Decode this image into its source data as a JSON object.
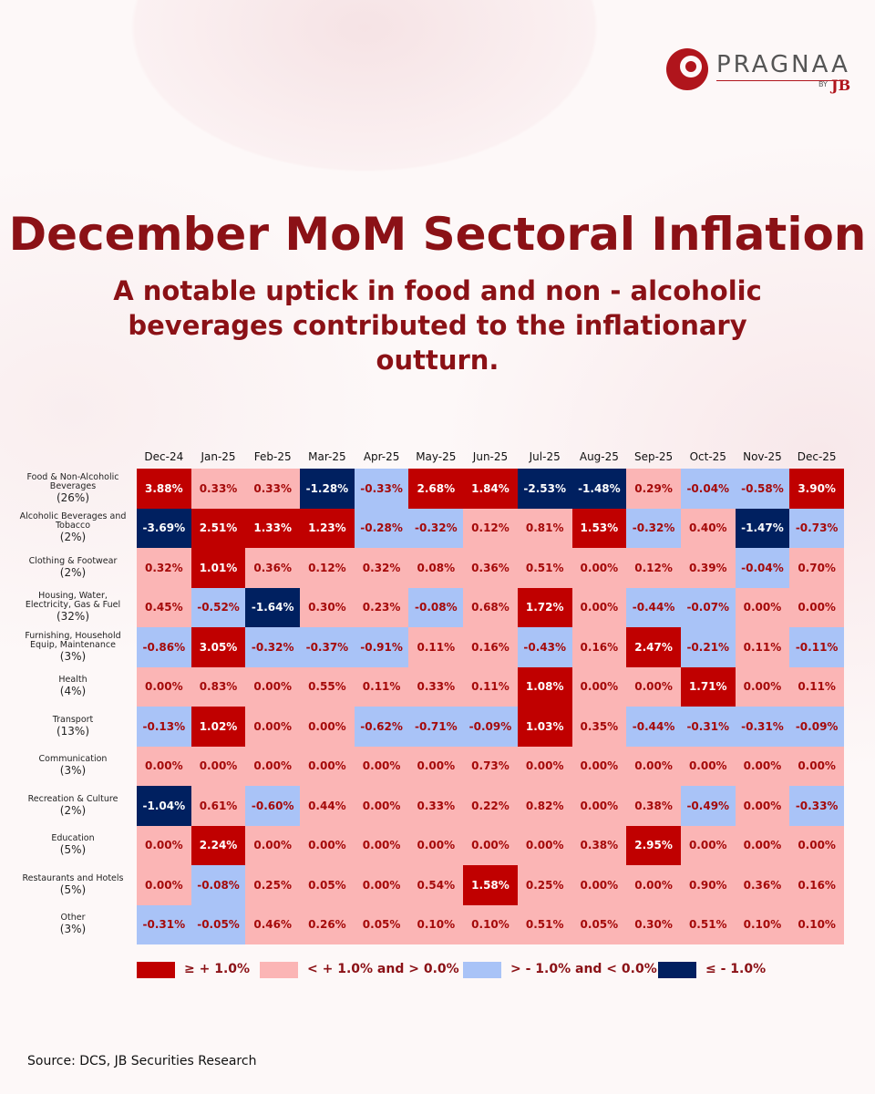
{
  "logo": {
    "name": "PRAGNAA",
    "by": "BY",
    "brand": "JB"
  },
  "chart_data": {
    "type": "heatmap",
    "title": "December MoM Sectoral Inflation",
    "subtitle": "A notable uptick in food and non - alcoholic beverages contributed to the inflationary outturn.",
    "categories": [
      "Dec-24",
      "Jan-25",
      "Feb-25",
      "Mar-25",
      "Apr-25",
      "May-25",
      "Jun-25",
      "Jul-25",
      "Aug-25",
      "Sep-25",
      "Oct-25",
      "Nov-25",
      "Dec-25"
    ],
    "rows": [
      {
        "name": "Food & Non-Alcoholic Beverages",
        "weight": "(26%)"
      },
      {
        "name": "Alcoholic Beverages and Tobacco",
        "weight": "(2%)"
      },
      {
        "name": "Clothing & Footwear",
        "weight": "(2%)"
      },
      {
        "name": "Housing, Water, Electricity, Gas & Fuel",
        "weight": "(32%)"
      },
      {
        "name": "Furnishing, Household Equip, Maintenance",
        "weight": "(3%)"
      },
      {
        "name": "Health",
        "weight": "(4%)"
      },
      {
        "name": "Transport",
        "weight": "(13%)"
      },
      {
        "name": "Communication",
        "weight": "(3%)"
      },
      {
        "name": "Recreation & Culture",
        "weight": "(2%)"
      },
      {
        "name": "Education",
        "weight": "(5%)"
      },
      {
        "name": "Restaurants and Hotels",
        "weight": "(5%)"
      },
      {
        "name": "Other",
        "weight": "(3%)"
      }
    ],
    "values": [
      [
        3.88,
        0.33,
        0.33,
        -1.28,
        -0.33,
        2.68,
        1.84,
        -2.53,
        -1.48,
        0.29,
        -0.04,
        -0.58,
        3.9
      ],
      [
        -3.69,
        2.51,
        1.33,
        1.23,
        -0.28,
        -0.32,
        0.12,
        0.81,
        1.53,
        -0.32,
        0.4,
        -1.47,
        -0.73
      ],
      [
        0.32,
        1.01,
        0.36,
        0.12,
        0.32,
        0.08,
        0.36,
        0.51,
        0.0,
        0.12,
        0.39,
        -0.04,
        0.7
      ],
      [
        0.45,
        -0.52,
        -1.64,
        0.3,
        0.23,
        -0.08,
        0.68,
        1.72,
        0.0,
        -0.44,
        -0.07,
        0.0,
        0.0
      ],
      [
        -0.86,
        3.05,
        -0.32,
        -0.37,
        -0.91,
        0.11,
        0.16,
        -0.43,
        0.16,
        2.47,
        -0.21,
        0.11,
        -0.11
      ],
      [
        0.0,
        0.83,
        0.0,
        0.55,
        0.11,
        0.33,
        0.11,
        1.08,
        0.0,
        0.0,
        1.71,
        0.0,
        0.11
      ],
      [
        -0.13,
        1.02,
        0.0,
        0.0,
        -0.62,
        -0.71,
        -0.09,
        1.03,
        0.35,
        -0.44,
        -0.31,
        -0.31,
        -0.09
      ],
      [
        0.0,
        0.0,
        0.0,
        0.0,
        0.0,
        0.0,
        0.73,
        0.0,
        0.0,
        0.0,
        0.0,
        0.0,
        0.0
      ],
      [
        -1.04,
        0.61,
        -0.6,
        0.44,
        0.0,
        0.33,
        0.22,
        0.82,
        0.0,
        0.38,
        -0.49,
        0.0,
        -0.33
      ],
      [
        0.0,
        2.24,
        0.0,
        0.0,
        0.0,
        0.0,
        0.0,
        0.0,
        0.38,
        2.95,
        0.0,
        0.0,
        0.0
      ],
      [
        0.0,
        -0.08,
        0.25,
        0.05,
        0.0,
        0.54,
        1.58,
        0.25,
        0.0,
        0.0,
        0.9,
        0.36,
        0.16
      ],
      [
        -0.31,
        -0.05,
        0.46,
        0.26,
        0.05,
        0.1,
        0.1,
        0.51,
        0.05,
        0.3,
        0.51,
        0.1,
        0.1
      ]
    ],
    "value_labels": [
      [
        "3.88%",
        "0.33%",
        "0.33%",
        "-1.28%",
        "-0.33%",
        "2.68%",
        "1.84%",
        "-2.53%",
        "-1.48%",
        "0.29%",
        "-0.04%",
        "-0.58%",
        "3.90%"
      ],
      [
        "-3.69%",
        "2.51%",
        "1.33%",
        "1.23%",
        "-0.28%",
        "-0.32%",
        "0.12%",
        "0.81%",
        "1.53%",
        "-0.32%",
        "0.40%",
        "-1.47%",
        "-0.73%"
      ],
      [
        "0.32%",
        "1.01%",
        "0.36%",
        "0.12%",
        "0.32%",
        "0.08%",
        "0.36%",
        "0.51%",
        "0.00%",
        "0.12%",
        "0.39%",
        "-0.04%",
        "0.70%"
      ],
      [
        "0.45%",
        "-0.52%",
        "-1.64%",
        "0.30%",
        "0.23%",
        "-0.08%",
        "0.68%",
        "1.72%",
        "0.00%",
        "-0.44%",
        "-0.07%",
        "0.00%",
        "0.00%"
      ],
      [
        "-0.86%",
        "3.05%",
        "-0.32%",
        "-0.37%",
        "-0.91%",
        "0.11%",
        "0.16%",
        "-0.43%",
        "0.16%",
        "2.47%",
        "-0.21%",
        "0.11%",
        "-0.11%"
      ],
      [
        "0.00%",
        "0.83%",
        "0.00%",
        "0.55%",
        "0.11%",
        "0.33%",
        "0.11%",
        "1.08%",
        "0.00%",
        "0.00%",
        "1.71%",
        "0.00%",
        "0.11%"
      ],
      [
        "-0.13%",
        "1.02%",
        "0.00%",
        "0.00%",
        "-0.62%",
        "-0.71%",
        "-0.09%",
        "1.03%",
        "0.35%",
        "-0.44%",
        "-0.31%",
        "-0.31%",
        "-0.09%"
      ],
      [
        "0.00%",
        "0.00%",
        "0.00%",
        "0.00%",
        "0.00%",
        "0.00%",
        "0.73%",
        "0.00%",
        "0.00%",
        "0.00%",
        "0.00%",
        "0.00%",
        "0.00%"
      ],
      [
        "-1.04%",
        "0.61%",
        "-0.60%",
        "0.44%",
        "0.00%",
        "0.33%",
        "0.22%",
        "0.82%",
        "0.00%",
        "0.38%",
        "-0.49%",
        "0.00%",
        "-0.33%"
      ],
      [
        "0.00%",
        "2.24%",
        "0.00%",
        "0.00%",
        "0.00%",
        "0.00%",
        "0.00%",
        "0.00%",
        "0.38%",
        "2.95%",
        "0.00%",
        "0.00%",
        "0.00%"
      ],
      [
        "0.00%",
        "-0.08%",
        "0.25%",
        "0.05%",
        "0.00%",
        "0.54%",
        "1.58%",
        "0.25%",
        "0.00%",
        "0.00%",
        "0.90%",
        "0.36%",
        "0.16%"
      ],
      [
        "-0.31%",
        "-0.05%",
        "0.46%",
        "0.26%",
        "0.05%",
        "0.10%",
        "0.10%",
        "0.51%",
        "0.05%",
        "0.30%",
        "0.51%",
        "0.10%",
        "0.10%"
      ]
    ],
    "legend": [
      {
        "label": "≥ + 1.0%",
        "color": "#c00000",
        "text_color": "#ffffff",
        "min": 1.0
      },
      {
        "label": "< + 1.0% and > 0.0%",
        "color": "#fbb5b5",
        "text_color": "#a50a0a",
        "min": 0.0,
        "max": 1.0
      },
      {
        "label": "> - 1.0% and < 0.0%",
        "color": "#a9c3f7",
        "text_color": "#a50a0a",
        "min": -1.0,
        "max": 0.0
      },
      {
        "label": "≤ - 1.0%",
        "color": "#002060",
        "text_color": "#ffffff",
        "max": -1.0
      }
    ],
    "source": "Source: DCS, JB Securities Research"
  }
}
